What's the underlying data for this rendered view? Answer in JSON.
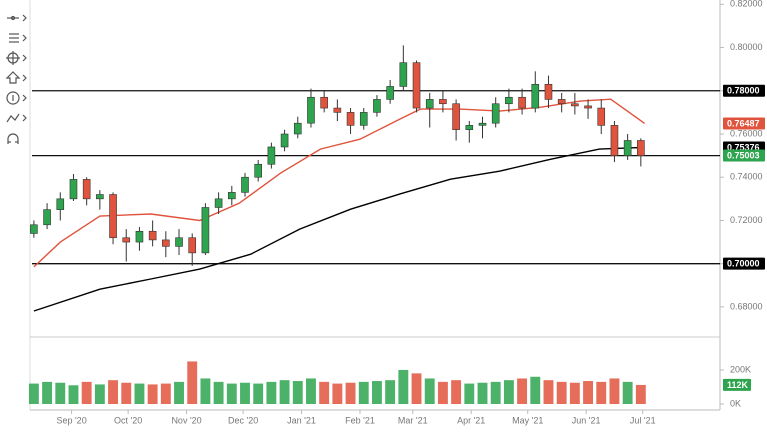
{
  "chart_data": [
    {
      "type": "candlestick",
      "x": [
        -5,
        2,
        9,
        16,
        23,
        30,
        37,
        44,
        51,
        58,
        65,
        72,
        79,
        86,
        93,
        100,
        107,
        114,
        121,
        128,
        135,
        142,
        149,
        156,
        163,
        170,
        177,
        184,
        191,
        198,
        205,
        212,
        219,
        226,
        233,
        240,
        247,
        254,
        261,
        268,
        275,
        282,
        289,
        296,
        303,
        310,
        317
      ],
      "open": [
        0.714,
        0.718,
        0.725,
        0.73,
        0.739,
        0.73,
        0.732,
        0.712,
        0.71,
        0.715,
        0.711,
        0.708,
        0.712,
        0.705,
        0.726,
        0.73,
        0.733,
        0.74,
        0.746,
        0.754,
        0.76,
        0.765,
        0.777,
        0.772,
        0.77,
        0.764,
        0.77,
        0.776,
        0.782,
        0.793,
        0.772,
        0.776,
        0.774,
        0.762,
        0.764,
        0.765,
        0.774,
        0.777,
        0.772,
        0.783,
        0.776,
        0.774,
        0.773,
        0.772,
        0.764,
        0.75,
        0.757
      ],
      "high": [
        0.72,
        0.728,
        0.733,
        0.7415,
        0.74,
        0.734,
        0.733,
        0.716,
        0.717,
        0.72,
        0.715,
        0.716,
        0.714,
        0.728,
        0.733,
        0.736,
        0.742,
        0.748,
        0.756,
        0.762,
        0.768,
        0.781,
        0.78,
        0.776,
        0.772,
        0.772,
        0.778,
        0.785,
        0.801,
        0.794,
        0.779,
        0.78,
        0.776,
        0.766,
        0.768,
        0.777,
        0.781,
        0.781,
        0.789,
        0.787,
        0.779,
        0.779,
        0.776,
        0.776,
        0.766,
        0.76,
        0.758
      ],
      "low": [
        0.712,
        0.716,
        0.72,
        0.729,
        0.727,
        0.725,
        0.709,
        0.701,
        0.706,
        0.708,
        0.703,
        0.704,
        0.699,
        0.704,
        0.723,
        0.727,
        0.731,
        0.738,
        0.744,
        0.752,
        0.758,
        0.763,
        0.77,
        0.766,
        0.76,
        0.762,
        0.768,
        0.774,
        0.78,
        0.77,
        0.763,
        0.77,
        0.757,
        0.756,
        0.758,
        0.763,
        0.77,
        0.769,
        0.77,
        0.772,
        0.77,
        0.769,
        0.767,
        0.76,
        0.747,
        0.748,
        0.745
      ],
      "close": [
        0.718,
        0.725,
        0.73,
        0.739,
        0.73,
        0.732,
        0.712,
        0.71,
        0.715,
        0.711,
        0.708,
        0.712,
        0.705,
        0.726,
        0.73,
        0.733,
        0.74,
        0.746,
        0.754,
        0.76,
        0.765,
        0.777,
        0.772,
        0.77,
        0.764,
        0.77,
        0.776,
        0.782,
        0.793,
        0.772,
        0.776,
        0.774,
        0.762,
        0.764,
        0.765,
        0.774,
        0.777,
        0.772,
        0.783,
        0.776,
        0.774,
        0.773,
        0.772,
        0.764,
        0.75,
        0.757,
        0.75
      ],
      "up_color": "#2ea44f",
      "down_color": "#e0533d",
      "overlays": [
        {
          "color": "#e0533d",
          "x": [
            -5,
            9,
            30,
            57,
            83,
            104,
            126,
            147,
            168,
            189,
            200,
            221,
            242,
            264,
            285,
            301,
            319
          ],
          "values": [
            0.6985,
            0.71,
            0.722,
            0.723,
            0.72,
            0.728,
            0.742,
            0.753,
            0.7576,
            0.7668,
            0.7715,
            0.7715,
            0.7706,
            0.7724,
            0.7752,
            0.7761,
            0.7649
          ]
        },
        {
          "color": "#000000",
          "x": [
            -5,
            30,
            57,
            83,
            110,
            136,
            163,
            189,
            216,
            242,
            269,
            295,
            319
          ],
          "values": [
            0.6781,
            0.6882,
            0.6929,
            0.6975,
            0.7044,
            0.716,
            0.7252,
            0.7322,
            0.7391,
            0.7428,
            0.7483,
            0.753,
            0.7538
          ]
        }
      ],
      "hlines": [
        0.78,
        0.75,
        0.7
      ],
      "price_labels": [
        {
          "value": 0.78,
          "label": "0.78000",
          "color": "#000000"
        },
        {
          "value": 0.76487,
          "label": "0.76487",
          "color": "#e0533d"
        },
        {
          "value": 0.75376,
          "label": "0.75376",
          "color": "#000000"
        },
        {
          "value": 0.75003,
          "label": "0.75003",
          "color": "#2ea44f"
        },
        {
          "value": 0.7,
          "label": "0.70000",
          "color": "#000000"
        }
      ],
      "xlim": [
        -6,
        359
      ],
      "ylim": [
        0.667,
        0.822
      ],
      "yticks": [
        {
          "value": 0.68,
          "label": "0.68000"
        },
        {
          "value": 0.7,
          "label": "0.70000"
        },
        {
          "value": 0.72,
          "label": "0.72000"
        },
        {
          "value": 0.74,
          "label": "0.74000"
        },
        {
          "value": 0.76,
          "label": "0.76000"
        },
        {
          "value": 0.78,
          "label": "0.78000"
        },
        {
          "value": 0.8,
          "label": "0.80000"
        },
        {
          "value": 0.82,
          "label": "0.82000"
        }
      ]
    },
    {
      "type": "bar",
      "x": [
        -5,
        2,
        9,
        16,
        23,
        30,
        37,
        44,
        51,
        58,
        65,
        72,
        79,
        86,
        93,
        100,
        107,
        114,
        121,
        128,
        135,
        142,
        149,
        156,
        163,
        170,
        177,
        184,
        191,
        198,
        205,
        212,
        219,
        226,
        233,
        240,
        247,
        254,
        261,
        268,
        275,
        282,
        289,
        296,
        303,
        310,
        317
      ],
      "values": [
        120,
        130,
        125,
        110,
        130,
        115,
        140,
        125,
        120,
        115,
        120,
        130,
        250,
        150,
        130,
        120,
        125,
        120,
        130,
        140,
        135,
        150,
        130,
        120,
        125,
        130,
        135,
        140,
        200,
        180,
        150,
        130,
        140,
        120,
        125,
        130,
        140,
        150,
        160,
        140,
        130,
        125,
        135,
        130,
        150,
        130,
        112
      ],
      "last_label": {
        "value": 112,
        "label": "112K",
        "color": "#2ea44f"
      },
      "xlim": [
        -6,
        359
      ],
      "ylim": [
        0,
        376
      ],
      "yticks": [
        {
          "value": 0,
          "label": "0K"
        },
        {
          "value": 200,
          "label": "200K"
        }
      ],
      "xticks": [
        {
          "value": 15,
          "label": "Sep '20"
        },
        {
          "value": 45,
          "label": "Oct '20"
        },
        {
          "value": 76,
          "label": "Nov '20"
        },
        {
          "value": 106,
          "label": "Dec '20"
        },
        {
          "value": 137,
          "label": "Jan '21"
        },
        {
          "value": 168,
          "label": "Feb '21"
        },
        {
          "value": 196,
          "label": "Mar '21"
        },
        {
          "value": 227,
          "label": "Apr '21"
        },
        {
          "value": 257,
          "label": "May '21"
        },
        {
          "value": 288,
          "label": "Jun '21"
        },
        {
          "value": 318,
          "label": "Jul '21"
        }
      ]
    }
  ]
}
